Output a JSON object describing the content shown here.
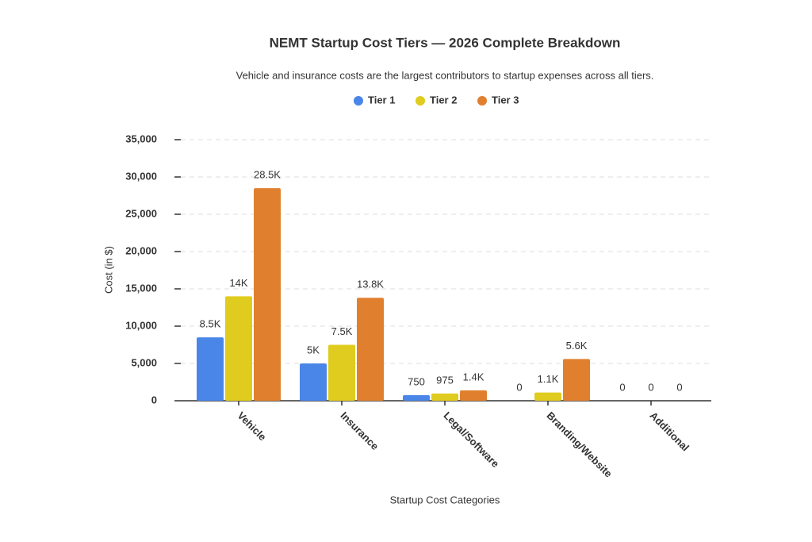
{
  "chart_data": {
    "type": "bar",
    "title": "NEMT Startup Cost Tiers — 2026 Complete Breakdown",
    "subtitle": "Vehicle and insurance costs are the largest contributors to startup expenses across all tiers.",
    "x_label": "Startup Cost Categories",
    "y_label": "Cost (in $)",
    "categories": [
      "Vehicle",
      "Insurance",
      "Legal/Software",
      "Branding/Website",
      "Additional"
    ],
    "series": [
      {
        "name": "Tier 1",
        "color": "#4a86e8",
        "values": [
          8500,
          5000,
          750,
          0,
          0
        ],
        "value_labels": [
          "8.5K",
          "5K",
          "750",
          "0",
          "0"
        ]
      },
      {
        "name": "Tier 2",
        "color": "#e0cc1e",
        "values": [
          14000,
          7500,
          975,
          1100,
          0
        ],
        "value_labels": [
          "14K",
          "7.5K",
          "975",
          "1.1K",
          "0"
        ]
      },
      {
        "name": "Tier 3",
        "color": "#e0802f",
        "values": [
          28500,
          13800,
          1400,
          5600,
          0
        ],
        "value_labels": [
          "28.5K",
          "13.8K",
          "1.4K",
          "5.6K",
          "0"
        ]
      }
    ],
    "ylim": [
      0,
      35000
    ],
    "yticks": [
      0,
      {
        "value": 5000,
        "label": "5,000"
      },
      {
        "value": 10000,
        "label": "10,000"
      },
      {
        "value": 15000,
        "label": "15,000"
      },
      {
        "value": 20000,
        "label": "20,000"
      },
      {
        "value": 25000,
        "label": "25,000"
      },
      {
        "value": 30000,
        "label": "30,000"
      },
      {
        "value": 35000,
        "label": "35,000"
      }
    ],
    "grid": true,
    "legend": "top"
  }
}
